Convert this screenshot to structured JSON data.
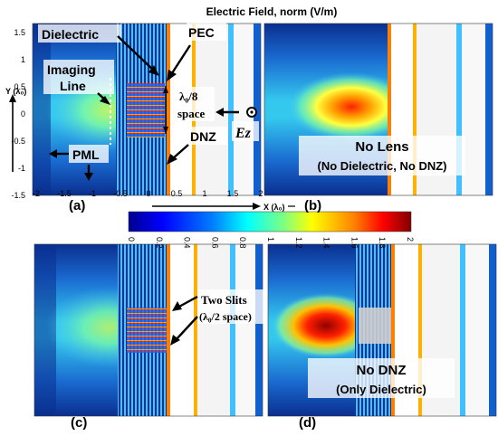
{
  "title": "Electric Field, norm (V/m)",
  "y_axis_label": "Y (λ₀)",
  "x_axis_label": "X (λ₀)",
  "y_ticks": [
    "1.5",
    "1",
    "0.5",
    "0",
    "-0.5",
    "-1",
    "-1.5"
  ],
  "x_ticks": [
    "-2",
    "-1.5",
    "-1",
    "-0.5",
    "0",
    "0.5",
    "1",
    "1.5",
    "2"
  ],
  "colorbar_ticks": [
    "0",
    "0.2",
    "0.4",
    "0.6",
    "0.8",
    "1",
    "1.2",
    "1.4",
    "1.6",
    "1.8",
    "2"
  ],
  "colorbar_colors": [
    "#00008f",
    "#0000ff",
    "#0060ff",
    "#00c0ff",
    "#40ffbf",
    "#a0ff60",
    "#ffff00",
    "#ffa000",
    "#ff4000",
    "#c00000",
    "#800000"
  ],
  "panels": {
    "a": {
      "label": "(a)",
      "annotations": {
        "dielectric": "Dielectric",
        "pec": "PEC",
        "imaging_line": "Imaging\nLine",
        "spacing": "λ₀/8\nspace",
        "ez": "Ez",
        "pml": "PML",
        "dnz": "DNZ"
      }
    },
    "b": {
      "label": "(b)",
      "caption_main": "No Lens",
      "caption_sub": "(No Dielectric, No DNZ)"
    },
    "c": {
      "label": "(c)",
      "annotation": "Two Slits\n(λ₀/2 space)"
    },
    "d": {
      "label": "(d)",
      "caption_main": "No DNZ",
      "caption_sub": "(Only Dielectric)"
    }
  }
}
